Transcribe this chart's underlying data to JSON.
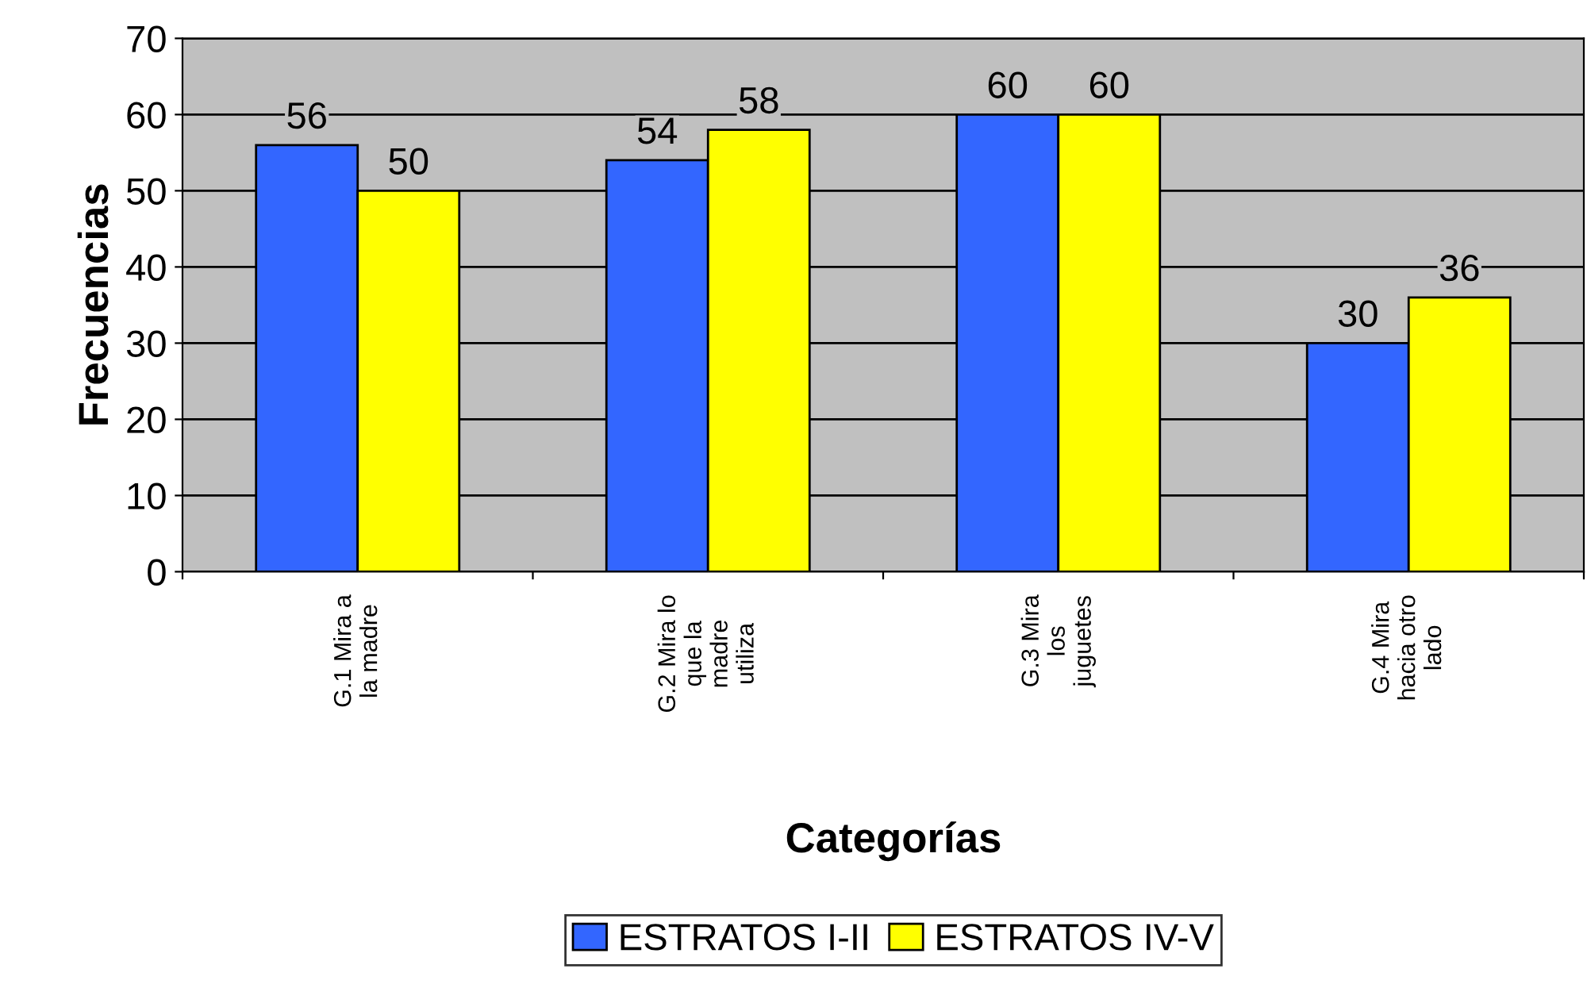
{
  "chart_data": {
    "type": "bar",
    "xlabel": "Categorías",
    "ylabel": "Frecuencias",
    "categories": [
      "G.1 Mira a la madre",
      "G.2 Mira lo que la madre utiliza",
      "G.3 Mira los juguetes",
      "G.4 Mira hacia otro lado"
    ],
    "series": [
      {
        "name": "ESTRATOS I-II",
        "color": "#3366ff",
        "values": [
          56,
          54,
          60,
          30
        ]
      },
      {
        "name": "ESTRATOS IV-V",
        "color": "#ffff00",
        "values": [
          50,
          58,
          60,
          36
        ]
      }
    ],
    "ylim": [
      0,
      70
    ],
    "yticks": [
      0,
      10,
      20,
      30,
      40,
      50,
      60,
      70
    ],
    "grid": "y",
    "legend": "bottom",
    "data_labels": true
  }
}
